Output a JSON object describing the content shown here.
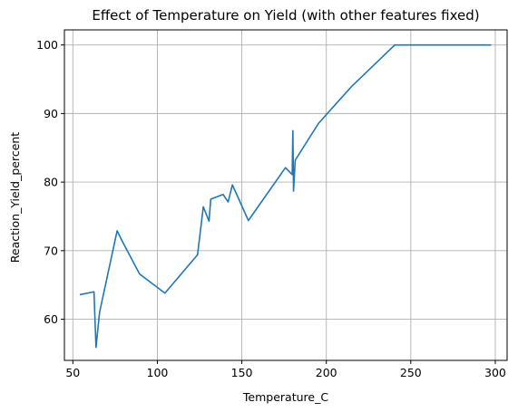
{
  "chart_data": {
    "type": "line",
    "title": "Effect of Temperature on Yield (with other features fixed)",
    "xlabel": "Temperature_C",
    "ylabel": "Reaction_Yield_percent",
    "xlim": [
      45,
      307
    ],
    "ylim": [
      54,
      102.2
    ],
    "xticks": [
      50,
      100,
      150,
      200,
      250,
      300
    ],
    "yticks": [
      60,
      70,
      80,
      90,
      100
    ],
    "grid": true,
    "line_color": "#1f77b4",
    "series": [
      {
        "x": [
          54.5,
          62.5,
          63.7,
          65.8,
          76.2,
          79.2,
          89.5,
          104.5,
          123.8,
          127.2,
          130.6,
          131.6,
          138.9,
          141.9,
          144.4,
          153.9,
          175.8,
          179.8,
          180.2,
          180.6,
          181.6,
          195.5,
          214.8,
          240.5,
          297.3
        ],
        "y": [
          63.6,
          64.0,
          55.9,
          61.0,
          72.9,
          71.4,
          66.6,
          63.8,
          69.4,
          76.4,
          74.3,
          77.5,
          78.2,
          77.1,
          79.6,
          74.4,
          82.1,
          81.1,
          87.5,
          78.7,
          83.2,
          88.6,
          93.9,
          100.0,
          100.0
        ]
      }
    ]
  }
}
